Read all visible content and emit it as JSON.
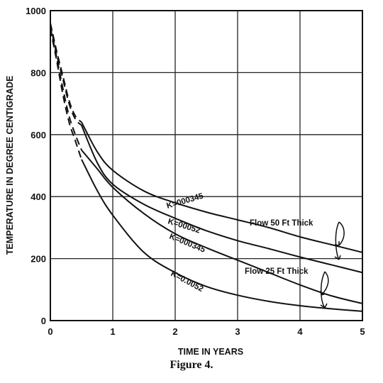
{
  "figure_caption": "Figure 4.",
  "chart_data": {
    "type": "line",
    "title": "",
    "xlabel": "TIME IN YEARS",
    "ylabel": "TEMPERATURE IN DEGREE CENTIGRADE",
    "xlim": [
      0,
      5
    ],
    "ylim": [
      0,
      1000
    ],
    "x_ticks": [
      "0",
      "1",
      "2",
      "3",
      "4",
      "5"
    ],
    "y_ticks": [
      "0",
      "200",
      "400",
      "600",
      "800",
      "1000"
    ],
    "grid": true,
    "series": [
      {
        "name": "K=000345",
        "group": "Flow 50 Ft Thick",
        "dashed_until": 0.5,
        "points": [
          [
            0,
            960
          ],
          [
            0.1,
            870
          ],
          [
            0.2,
            790
          ],
          [
            0.3,
            710
          ],
          [
            0.4,
            660
          ],
          [
            0.5,
            640
          ],
          [
            0.75,
            545
          ],
          [
            1,
            485
          ],
          [
            1.5,
            418
          ],
          [
            2,
            380
          ],
          [
            2.5,
            350
          ],
          [
            3,
            325
          ],
          [
            3.5,
            300
          ],
          [
            4,
            270
          ],
          [
            4.5,
            245
          ],
          [
            5,
            220
          ]
        ]
      },
      {
        "name": "K=00052",
        "group": "Flow 50 Ft Thick",
        "dashed_until": 0.5,
        "points": [
          [
            0,
            955
          ],
          [
            0.1,
            860
          ],
          [
            0.2,
            780
          ],
          [
            0.3,
            700
          ],
          [
            0.4,
            650
          ],
          [
            0.5,
            630
          ],
          [
            0.75,
            510
          ],
          [
            1,
            440
          ],
          [
            1.5,
            375
          ],
          [
            2,
            330
          ],
          [
            2.5,
            290
          ],
          [
            3,
            258
          ],
          [
            3.5,
            232
          ],
          [
            4,
            205
          ],
          [
            4.5,
            180
          ],
          [
            5,
            155
          ]
        ]
      },
      {
        "name": "K=000345",
        "group": "Flow 25 Ft Thick",
        "dashed_until": 0.5,
        "points": [
          [
            0,
            945
          ],
          [
            0.1,
            850
          ],
          [
            0.2,
            750
          ],
          [
            0.3,
            660
          ],
          [
            0.4,
            600
          ],
          [
            0.5,
            550
          ],
          [
            0.75,
            490
          ],
          [
            1,
            430
          ],
          [
            1.5,
            345
          ],
          [
            2,
            280
          ],
          [
            2.5,
            235
          ],
          [
            3,
            195
          ],
          [
            3.5,
            155
          ],
          [
            4,
            115
          ],
          [
            4.5,
            80
          ],
          [
            5,
            55
          ]
        ]
      },
      {
        "name": "K=0.0052",
        "group": "Flow 25 Ft Thick",
        "dashed_until": 0.5,
        "points": [
          [
            0,
            940
          ],
          [
            0.1,
            840
          ],
          [
            0.2,
            730
          ],
          [
            0.3,
            640
          ],
          [
            0.4,
            580
          ],
          [
            0.5,
            520
          ],
          [
            0.75,
            420
          ],
          [
            1,
            340
          ],
          [
            1.5,
            220
          ],
          [
            2,
            155
          ],
          [
            2.5,
            110
          ],
          [
            3,
            82
          ],
          [
            3.5,
            62
          ],
          [
            4,
            48
          ],
          [
            4.5,
            38
          ],
          [
            5,
            30
          ]
        ]
      }
    ],
    "annotations": [
      "Flow 50 Ft Thick",
      "Flow 25 Ft Thick"
    ]
  }
}
